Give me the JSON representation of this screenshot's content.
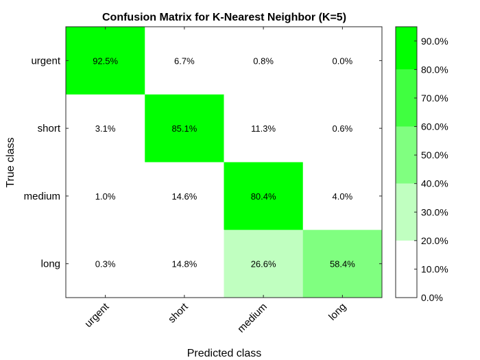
{
  "chart_data": {
    "type": "heatmap",
    "title": "Confusion Matrix for K-Nearest Neighbor (K=5)",
    "xlabel": "Predicted class",
    "ylabel": "True class",
    "categories_x": [
      "urgent",
      "short",
      "medium",
      "long"
    ],
    "categories_y": [
      "urgent",
      "short",
      "medium",
      "long"
    ],
    "values": [
      [
        92.5,
        6.7,
        0.8,
        0.0
      ],
      [
        3.1,
        85.1,
        11.3,
        0.6
      ],
      [
        1.0,
        14.6,
        80.4,
        4.0
      ],
      [
        0.3,
        14.8,
        26.6,
        58.4
      ]
    ],
    "cell_labels": [
      [
        "92.5%",
        "6.7%",
        "0.8%",
        "0.0%"
      ],
      [
        "3.1%",
        "85.1%",
        "11.3%",
        "0.6%"
      ],
      [
        "1.0%",
        "14.6%",
        "80.4%",
        "4.0%"
      ],
      [
        "0.3%",
        "14.8%",
        "26.6%",
        "58.4%"
      ]
    ],
    "colorbar": {
      "range": [
        0,
        95
      ],
      "ticks": [
        0,
        10,
        20,
        30,
        40,
        50,
        60,
        70,
        80,
        90
      ],
      "tick_labels": [
        "0.0%",
        "10.0%",
        "20.0%",
        "30.0%",
        "40.0%",
        "50.0%",
        "60.0%",
        "70.0%",
        "80.0%",
        "90.0%"
      ],
      "bands": [
        {
          "from": 0,
          "to": 20,
          "color": "#ffffff"
        },
        {
          "from": 20,
          "to": 40,
          "color": "#c0ffc0"
        },
        {
          "from": 40,
          "to": 60,
          "color": "#80ff80"
        },
        {
          "from": 60,
          "to": 80,
          "color": "#40ff40"
        },
        {
          "from": 80,
          "to": 95,
          "color": "#00ff00"
        }
      ]
    },
    "legend": "right (colorbar)",
    "grid": false
  }
}
